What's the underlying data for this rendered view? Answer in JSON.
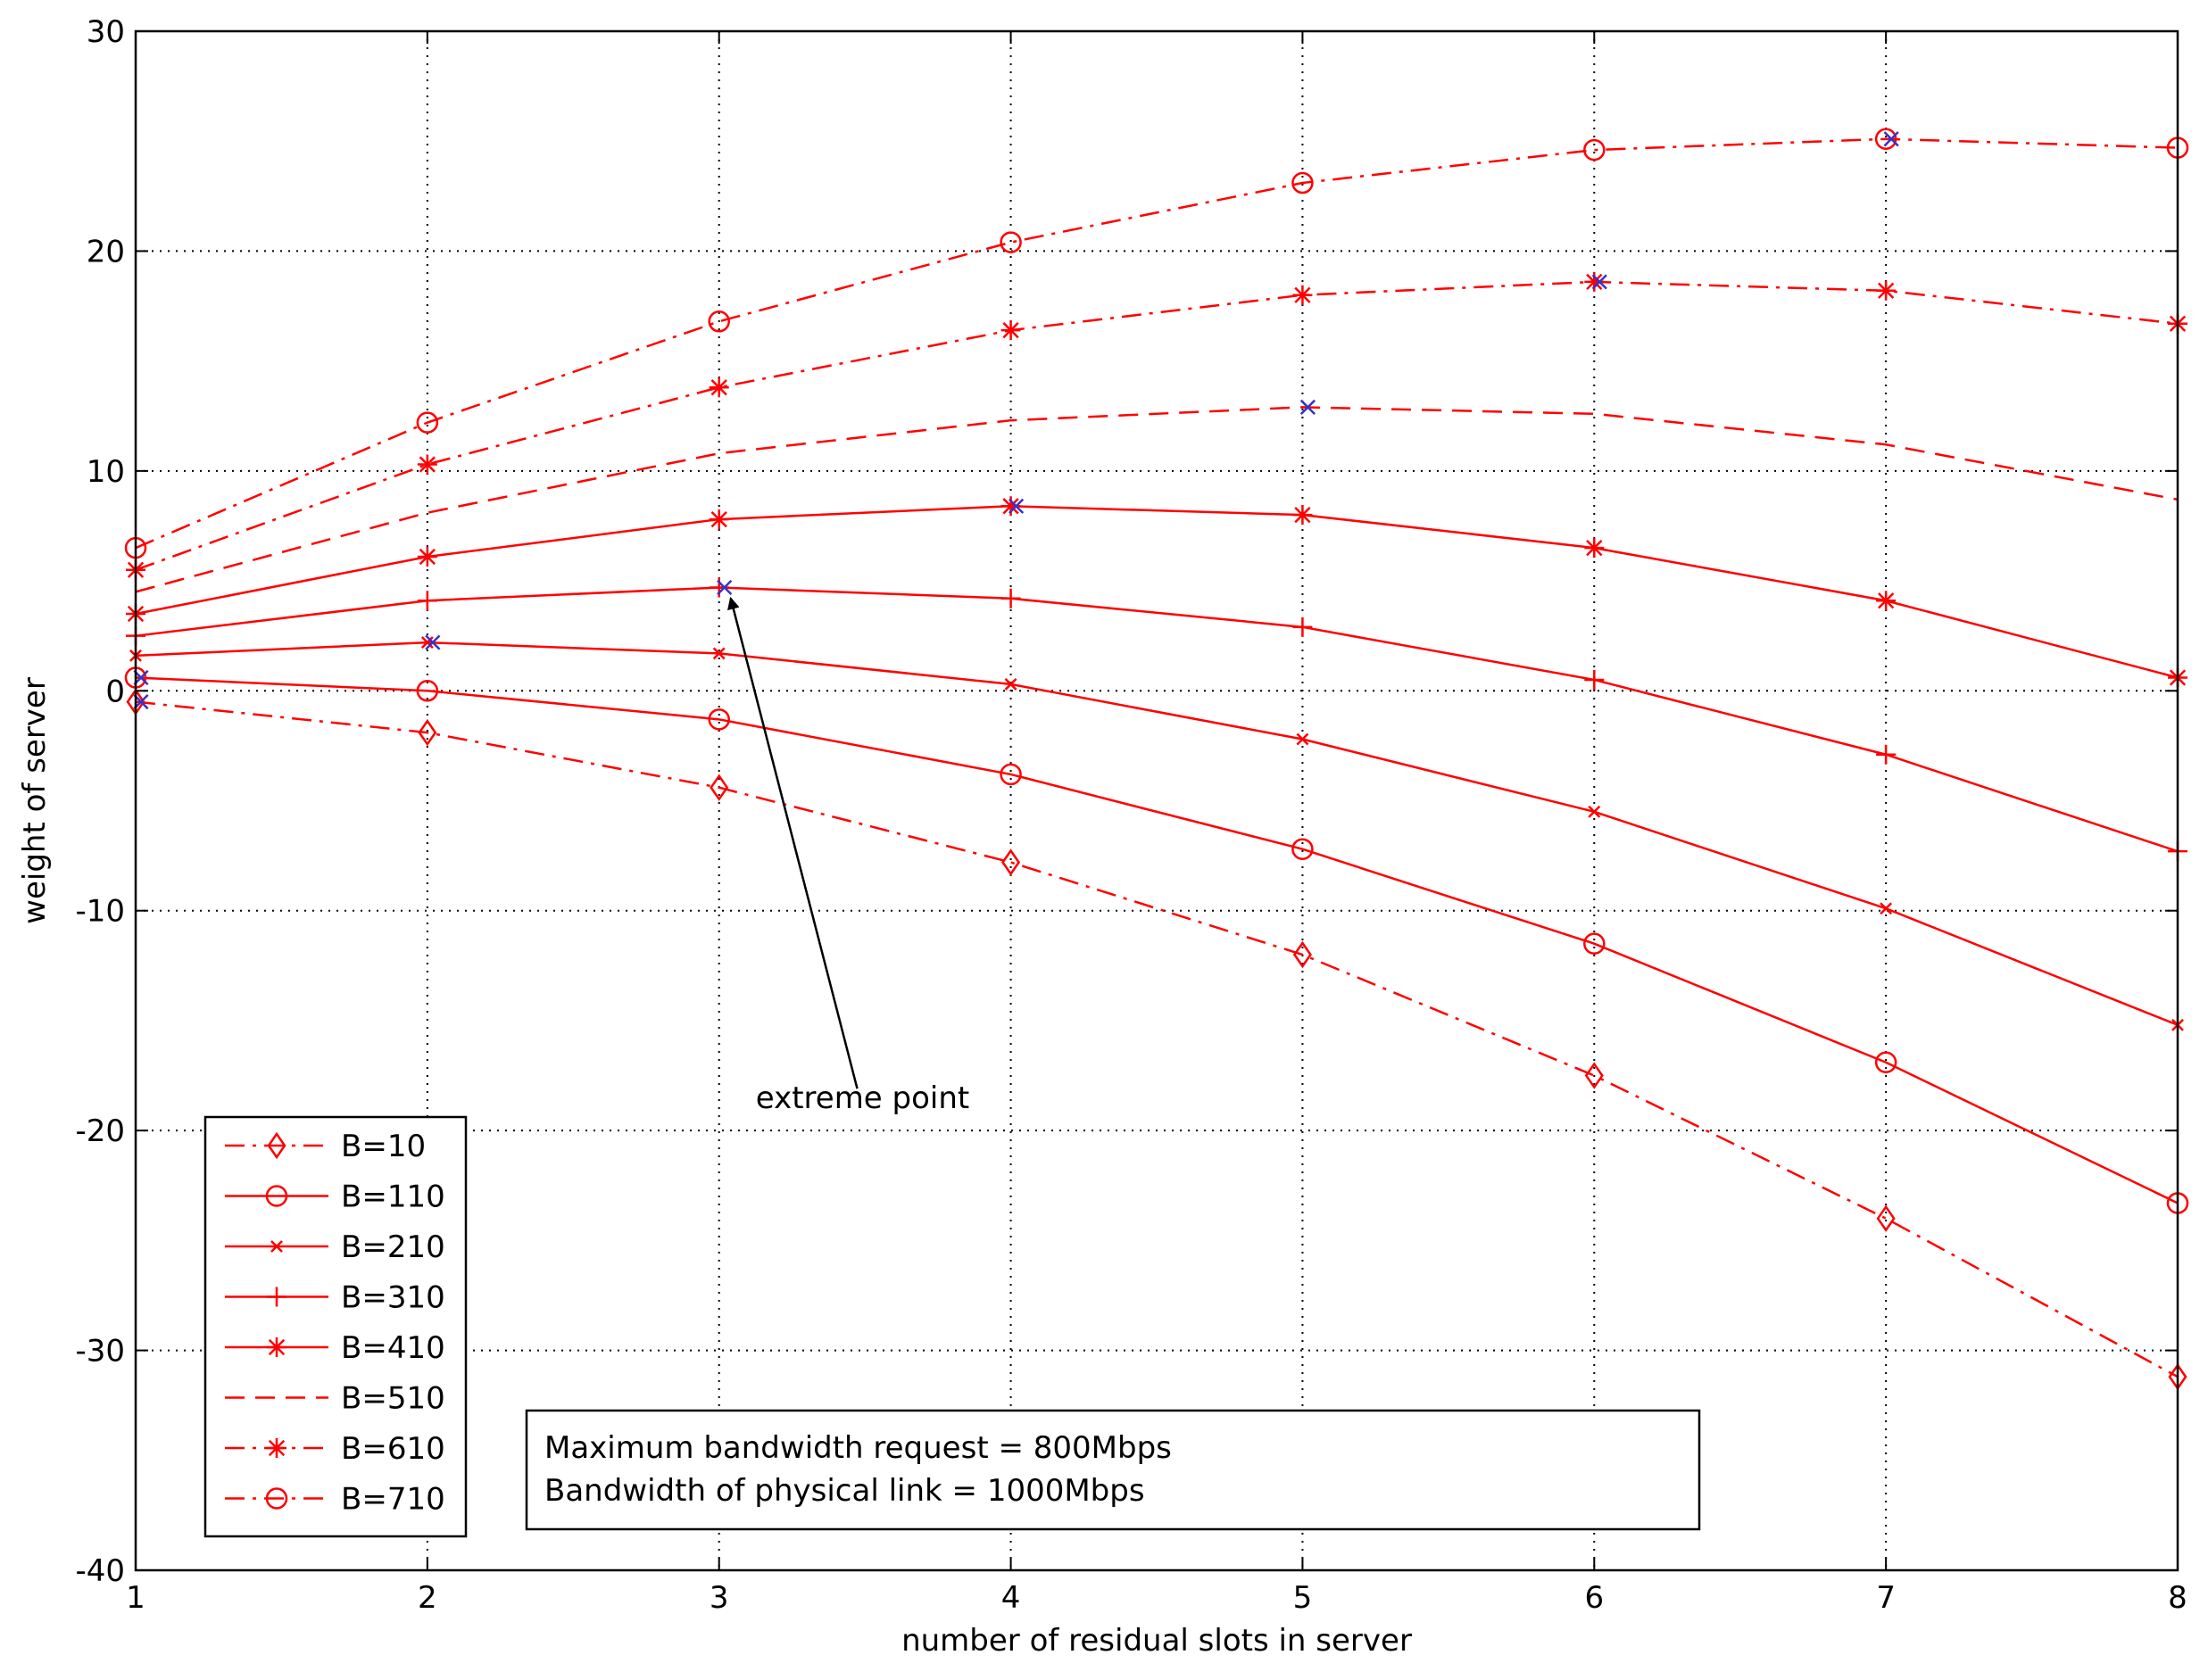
{
  "chart_data": {
    "type": "line",
    "xlabel": "number of residual slots in server",
    "ylabel": "weight of server",
    "xlim": [
      1,
      8
    ],
    "ylim": [
      -40,
      30
    ],
    "x_ticks": [
      "1",
      "2",
      "3",
      "4",
      "5",
      "6",
      "7",
      "8"
    ],
    "y_ticks": [
      "30",
      "20",
      "10",
      "0",
      "-10",
      "-20",
      "-30",
      "-40"
    ],
    "grid": true,
    "legend_position": "bottom-left",
    "x": [
      1,
      2,
      3,
      4,
      5,
      6,
      7,
      8
    ],
    "series": [
      {
        "name": "B=10",
        "line": "dashdot",
        "marker": "diamond",
        "color": "#ff0000",
        "values": [
          -0.5,
          -1.9,
          -4.4,
          -7.8,
          -12.0,
          -17.5,
          -24.0,
          -31.2
        ]
      },
      {
        "name": "B=110",
        "line": "solid",
        "marker": "circle",
        "color": "#ff0000",
        "values": [
          0.6,
          0.0,
          -1.3,
          -3.8,
          -7.2,
          -11.5,
          -16.9,
          -23.3
        ]
      },
      {
        "name": "B=210",
        "line": "solid",
        "marker": "x",
        "color": "#ff0000",
        "values": [
          1.6,
          2.2,
          1.7,
          0.3,
          -2.2,
          -5.5,
          -9.9,
          -15.2
        ]
      },
      {
        "name": "B=310",
        "line": "solid",
        "marker": "plus",
        "color": "#ff0000",
        "values": [
          2.5,
          4.1,
          4.7,
          4.2,
          2.9,
          0.5,
          -2.9,
          -7.3
        ]
      },
      {
        "name": "B=410",
        "line": "solid",
        "marker": "star",
        "color": "#ff0000",
        "values": [
          3.5,
          6.1,
          7.8,
          8.4,
          8.0,
          6.5,
          4.1,
          0.6
        ]
      },
      {
        "name": "B=510",
        "line": "dashed",
        "marker": "none",
        "color": "#ff0000",
        "values": [
          4.5,
          8.1,
          10.8,
          12.3,
          12.9,
          12.6,
          11.2,
          8.7
        ]
      },
      {
        "name": "B=610",
        "line": "dashdot",
        "marker": "star",
        "color": "#ff0000",
        "values": [
          5.5,
          10.3,
          13.8,
          16.4,
          18.0,
          18.6,
          18.2,
          16.7
        ]
      },
      {
        "name": "B=710",
        "line": "dashdot",
        "marker": "circle",
        "color": "#ff0000",
        "values": [
          6.5,
          12.2,
          16.8,
          20.4,
          23.1,
          24.6,
          25.1,
          24.7
        ]
      }
    ],
    "extreme_points": {
      "color": "#3333cc",
      "marker": "x",
      "points": [
        {
          "x": 1,
          "y": -0.5
        },
        {
          "x": 1,
          "y": 0.6
        },
        {
          "x": 2,
          "y": 2.2
        },
        {
          "x": 3,
          "y": 4.7
        },
        {
          "x": 4,
          "y": 8.4
        },
        {
          "x": 5,
          "y": 12.9
        },
        {
          "x": 6,
          "y": 18.6
        },
        {
          "x": 7,
          "y": 25.1
        }
      ]
    },
    "annotation": {
      "text": "extreme point",
      "target_x": 3.04,
      "target_y": 4.2,
      "text_x": 3.7,
      "text_y": -18.5
    },
    "note_lines": [
      "Maximum bandwidth request = 800Mbps",
      "Bandwidth of  physical link = 1000Mbps"
    ]
  }
}
